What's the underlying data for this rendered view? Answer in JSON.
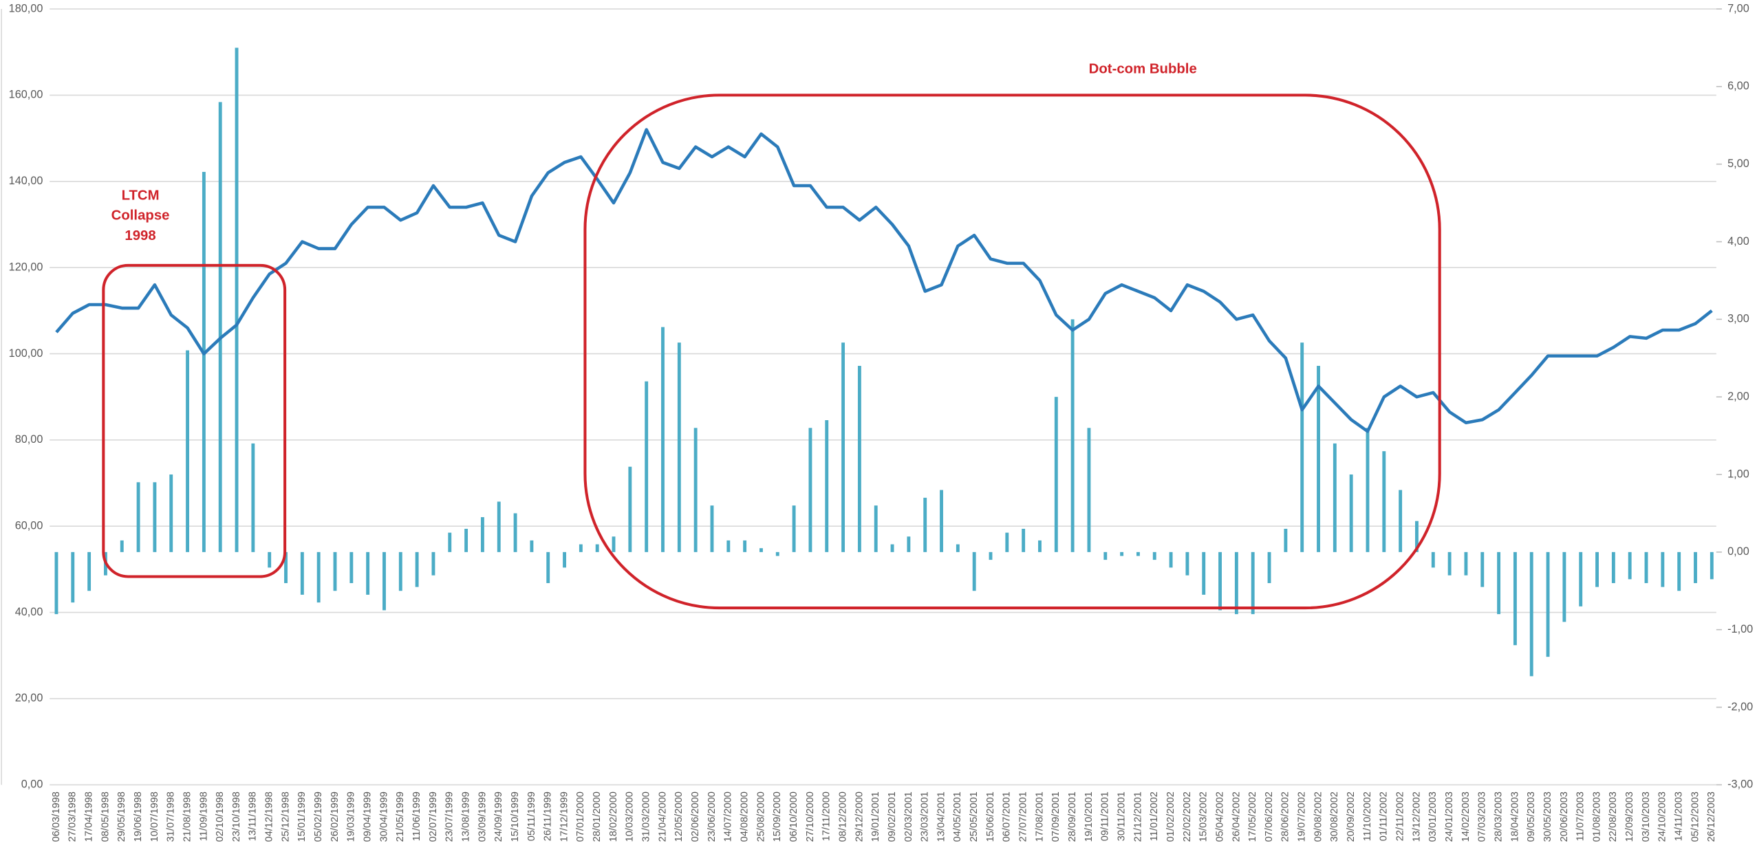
{
  "chart_data": {
    "type": "combo",
    "categories": [
      "06/03/1998",
      "27/03/1998",
      "17/04/1998",
      "08/05/1998",
      "29/05/1998",
      "19/06/1998",
      "10/07/1998",
      "31/07/1998",
      "21/08/1998",
      "11/09/1998",
      "02/10/1998",
      "23/10/1998",
      "13/11/1998",
      "04/12/1998",
      "25/12/1998",
      "15/01/1999",
      "05/02/1999",
      "26/02/1999",
      "19/03/1999",
      "09/04/1999",
      "30/04/1999",
      "21/05/1999",
      "11/06/1999",
      "02/07/1999",
      "23/07/1999",
      "13/08/1999",
      "03/09/1999",
      "24/09/1999",
      "15/10/1999",
      "05/11/1999",
      "26/11/1999",
      "17/12/1999",
      "07/01/2000",
      "28/01/2000",
      "18/02/2000",
      "10/03/2000",
      "31/03/2000",
      "21/04/2000",
      "12/05/2000",
      "02/06/2000",
      "23/06/2000",
      "14/07/2000",
      "04/08/2000",
      "25/08/2000",
      "15/09/2000",
      "06/10/2000",
      "27/10/2000",
      "17/11/2000",
      "08/12/2000",
      "29/12/2000",
      "19/01/2001",
      "09/02/2001",
      "02/03/2001",
      "23/03/2001",
      "13/04/2001",
      "04/05/2001",
      "25/05/2001",
      "15/06/2001",
      "06/07/2001",
      "27/07/2001",
      "17/08/2001",
      "07/09/2001",
      "28/09/2001",
      "19/10/2001",
      "09/11/2001",
      "30/11/2001",
      "21/12/2001",
      "11/01/2002",
      "01/02/2002",
      "22/02/2002",
      "15/03/2002",
      "05/04/2002",
      "26/04/2002",
      "17/05/2002",
      "07/06/2002",
      "28/06/2002",
      "19/07/2002",
      "09/08/2002",
      "30/08/2002",
      "20/09/2002",
      "11/10/2002",
      "01/11/2002",
      "22/11/2002",
      "13/12/2002",
      "03/01/2003",
      "24/01/2003",
      "14/02/2003",
      "07/03/2003",
      "28/03/2003",
      "18/04/2003",
      "09/05/2003",
      "30/05/2003",
      "20/06/2003",
      "11/07/2003",
      "01/08/2003",
      "22/08/2003",
      "12/09/2003",
      "03/10/2003",
      "24/10/2003",
      "14/11/2003",
      "05/12/2003",
      "26/12/2003"
    ],
    "series": [
      {
        "type": "bar",
        "axis": "y2",
        "color": "#4bacc6",
        "values": [
          -0.8,
          -0.65,
          -0.5,
          -0.3,
          0.15,
          0.9,
          0.9,
          1.0,
          2.6,
          4.9,
          5.8,
          6.5,
          1.4,
          -0.2,
          -0.4,
          -0.55,
          -0.65,
          -0.5,
          -0.4,
          -0.55,
          -0.75,
          -0.5,
          -0.45,
          -0.3,
          0.25,
          0.3,
          0.45,
          0.65,
          0.5,
          0.15,
          -0.4,
          -0.2,
          0.1,
          0.1,
          0.2,
          1.1,
          2.2,
          2.9,
          2.7,
          1.6,
          0.6,
          0.15,
          0.15,
          0.05,
          -0.05,
          0.6,
          1.6,
          1.7,
          2.7,
          2.4,
          0.6,
          0.1,
          0.2,
          0.7,
          0.8,
          0.1,
          -0.5,
          -0.1,
          0.25,
          0.3,
          0.15,
          2.0,
          3.0,
          1.6,
          -0.1,
          -0.05,
          -0.05,
          -0.1,
          -0.2,
          -0.3,
          -0.55,
          -0.75,
          -0.8,
          -0.8,
          -0.4,
          0.3,
          2.7,
          2.4,
          1.4,
          1.0,
          1.6,
          1.3,
          0.8,
          0.4,
          -0.2,
          -0.3,
          -0.3,
          -0.45,
          -0.8,
          -1.2,
          -1.6,
          -1.35,
          -0.9,
          -0.7,
          -0.45,
          -0.4,
          -0.35,
          -0.4,
          -0.45,
          -0.5,
          -0.4,
          -0.35
        ]
      },
      {
        "type": "line",
        "axis": "y",
        "color": "#2b7bba",
        "values": [
          105,
          109.4,
          111.4,
          111.4,
          110.6,
          110.6,
          116,
          109,
          106,
          100,
          103.6,
          106.7,
          113,
          118.5,
          121,
          126,
          124.4,
          124.4,
          130,
          134,
          134,
          131,
          132.7,
          139,
          134,
          134,
          135,
          127.5,
          126,
          136.6,
          142,
          144.4,
          145.7,
          140.5,
          135,
          142,
          152,
          144.4,
          143,
          148,
          145.7,
          148,
          145.7,
          151,
          148,
          139,
          139,
          134,
          134,
          131,
          134,
          130,
          125,
          114.5,
          116,
          125,
          127.5,
          122,
          121,
          121,
          117,
          109,
          105.5,
          108,
          114,
          116,
          114.5,
          113,
          110,
          116,
          114.5,
          112,
          108,
          109,
          103,
          99,
          87,
          92.5,
          88.6,
          84.7,
          82,
          90,
          92.5,
          90,
          91,
          86.5,
          84,
          84.7,
          87,
          91,
          95,
          99.5,
          99.5,
          99.5,
          99.5,
          101.5,
          104,
          103.6,
          105.5,
          105.5,
          107,
          110
        ]
      }
    ],
    "ylim": [
      0,
      180
    ],
    "yticks": [
      {
        "value": 0,
        "label": "0,00"
      },
      {
        "value": 20,
        "label": "20,00"
      },
      {
        "value": 40,
        "label": "40,00"
      },
      {
        "value": 60,
        "label": "60,00"
      },
      {
        "value": 80,
        "label": "80,00"
      },
      {
        "value": 100,
        "label": "100,00"
      },
      {
        "value": 120,
        "label": "120,00"
      },
      {
        "value": 140,
        "label": "140,00"
      },
      {
        "value": 160,
        "label": "160,00"
      },
      {
        "value": 180,
        "label": "180,00"
      }
    ],
    "y2lim": [
      -3,
      7
    ],
    "y2ticks": [
      {
        "value": -3,
        "label": "-3,00"
      },
      {
        "value": -2,
        "label": "-2,00"
      },
      {
        "value": -1,
        "label": "-1,00"
      },
      {
        "value": 0,
        "label": "0,00"
      },
      {
        "value": 1,
        "label": "1,00"
      },
      {
        "value": 2,
        "label": "2,00"
      },
      {
        "value": 3,
        "label": "3,00"
      },
      {
        "value": 4,
        "label": "4,00"
      },
      {
        "value": 5,
        "label": "5,00"
      },
      {
        "value": 6,
        "label": "6,00"
      },
      {
        "value": 7,
        "label": "7,00"
      }
    ],
    "grid": true,
    "annotations": [
      {
        "lines": [
          "LTCM",
          "Collapse",
          "1998"
        ]
      },
      {
        "lines": [
          "Dot-com Bubble"
        ]
      }
    ]
  }
}
